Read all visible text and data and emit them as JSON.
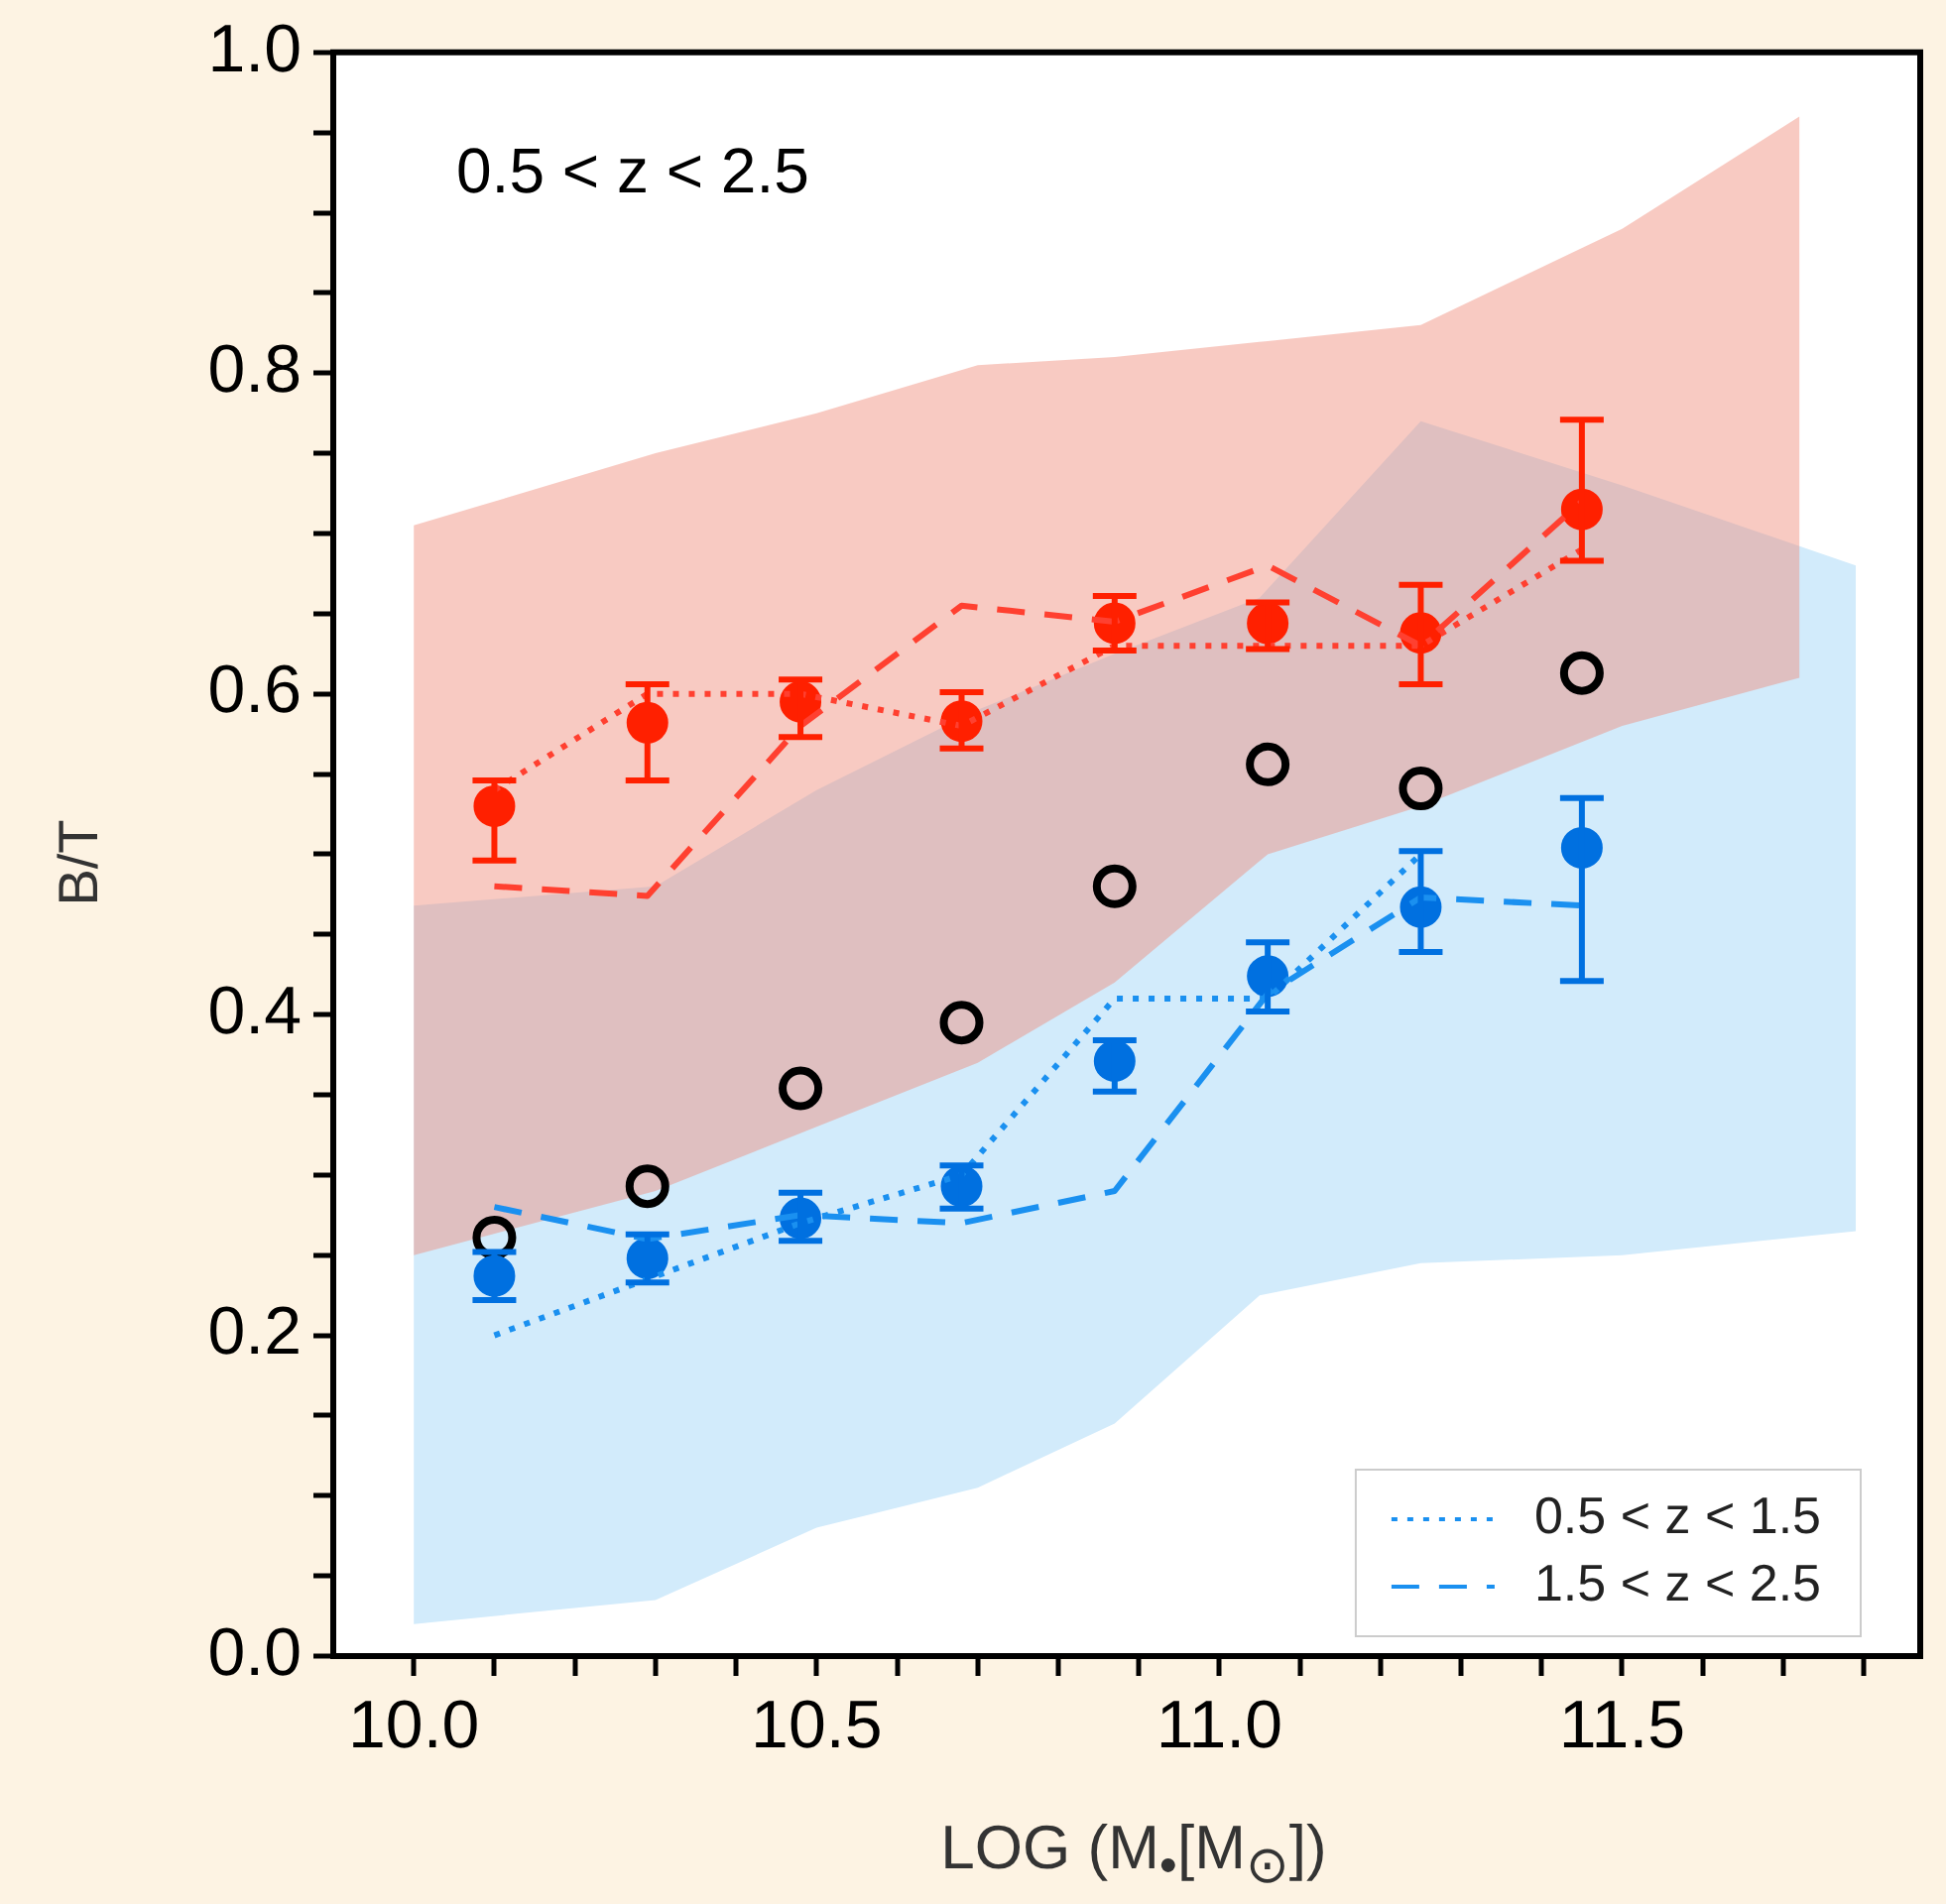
{
  "chart_data": {
    "type": "scatter",
    "title": "0.5 < z < 2.5",
    "xlabel": "LOG (M$_{•}$[M$_{⊙}$])",
    "ylabel": "B/T",
    "x": [
      10.1,
      10.29,
      10.48,
      10.68,
      10.87,
      11.06,
      11.25,
      11.45
    ],
    "xlim": [
      9.9,
      11.87
    ],
    "xticks": [
      {
        "value": 10,
        "label": "10.0"
      },
      {
        "value": 10.1,
        "label": null
      },
      {
        "value": 10.2,
        "label": null
      },
      {
        "value": 10.3,
        "label": null
      },
      {
        "value": 10.4,
        "label": null
      },
      10.5,
      {
        "value": 10.6,
        "label": null
      },
      {
        "value": 10.7,
        "label": null
      },
      {
        "value": 10.8,
        "label": null
      },
      {
        "value": 10.9,
        "label": null
      },
      {
        "value": 11,
        "label": "11.0"
      },
      {
        "value": 11.1,
        "label": null
      },
      {
        "value": 11.2,
        "label": null
      },
      {
        "value": 11.3,
        "label": null
      },
      {
        "value": 11.4,
        "label": null
      },
      11.5,
      {
        "value": 11.6,
        "label": null
      },
      {
        "value": 11.7,
        "label": null
      },
      {
        "value": 11.8,
        "label": null
      }
    ],
    "ylim": [
      0,
      1
    ],
    "yticks": [
      {
        "value": 0,
        "label": "0.0"
      },
      {
        "value": 0.05,
        "label": null
      },
      {
        "value": 0.1,
        "label": null
      },
      {
        "value": 0.15,
        "label": null
      },
      0.2,
      {
        "value": 0.25,
        "label": null
      },
      {
        "value": 0.3,
        "label": null
      },
      {
        "value": 0.35,
        "label": null
      },
      0.4,
      {
        "value": 0.45,
        "label": null
      },
      {
        "value": 0.5,
        "label": null
      },
      {
        "value": 0.55,
        "label": null
      },
      0.6,
      {
        "value": 0.65,
        "label": null
      },
      {
        "value": 0.7,
        "label": null
      },
      {
        "value": 0.75,
        "label": null
      },
      0.8,
      {
        "value": 0.85,
        "label": null
      },
      {
        "value": 0.9,
        "label": null
      },
      {
        "value": 0.95,
        "label": null
      },
      {
        "value": 1,
        "label": "1.0"
      }
    ],
    "grid": false,
    "legend": "bottom right",
    "marker": "circle",
    "series": [
      {
        "type": "area",
        "marker": "none",
        "color": "#d2ebfb",
        "x": [
          10.0,
          10.3,
          10.5,
          10.7,
          10.87,
          11.05,
          11.25,
          11.5,
          11.79
        ],
        "values": [
          null,
          null,
          null,
          null,
          null,
          null,
          null,
          null,
          null
        ],
        "lower": [
          0.02,
          0.035,
          0.08,
          0.105,
          0.145,
          0.225,
          0.245,
          0.25,
          0.265
        ],
        "upper": [
          0.468,
          0.48,
          0.54,
          0.59,
          0.625,
          0.66,
          0.77,
          0.73,
          0.68
        ]
      },
      {
        "type": "area",
        "marker": "none",
        "color": "#f08a78",
        "x": [
          10.0,
          10.3,
          10.5,
          10.7,
          10.87,
          11.06,
          11.25,
          11.5,
          11.72
        ],
        "values": [
          null,
          null,
          null,
          null,
          null,
          null,
          null,
          null,
          null
        ],
        "lower": [
          0.25,
          0.29,
          0.33,
          0.37,
          0.42,
          0.5,
          0.53,
          0.58,
          0.61
        ],
        "upper": [
          0.705,
          0.75,
          0.775,
          0.805,
          0.81,
          0.82,
          0.83,
          0.89,
          0.96
        ]
      },
      {
        "type": "line",
        "line_style": "dotted",
        "marker": "none",
        "color": "#ff4030",
        "values": [
          0.54,
          0.6,
          0.6,
          0.58,
          0.63,
          0.63,
          0.63,
          0.69
        ]
      },
      {
        "type": "line",
        "line_style": "dashed",
        "marker": "none",
        "color": "#ff4030",
        "values": [
          0.48,
          0.474,
          0.58,
          0.655,
          0.645,
          0.68,
          0.63,
          0.72
        ]
      },
      {
        "type": "line",
        "name": "0.5 < z < 1.5",
        "line_style": "dotted",
        "marker": "none",
        "color": "#1a90f0",
        "values": [
          0.2,
          0.235,
          0.27,
          0.3,
          0.41,
          0.41,
          0.5,
          null
        ]
      },
      {
        "type": "line",
        "name": "1.5 < z < 2.5",
        "line_style": "dashed",
        "marker": "none",
        "color": "#1a90f0",
        "values": [
          0.28,
          0.26,
          0.275,
          0.27,
          0.29,
          0.413,
          0.473,
          0.468
        ]
      },
      {
        "type": "scatter",
        "color": "#ff2000",
        "values": [
          0.53,
          0.582,
          0.595,
          0.583,
          0.644,
          0.644,
          0.638,
          0.715
        ],
        "errors": [
          [
            0.496,
            0.546
          ],
          [
            0.546,
            0.606
          ],
          [
            0.573,
            0.609
          ],
          [
            0.566,
            0.601
          ],
          [
            0.627,
            0.661
          ],
          [
            0.628,
            0.657
          ],
          [
            0.606,
            0.668
          ],
          [
            0.683,
            0.771
          ]
        ]
      },
      {
        "type": "scatter",
        "color": "#0070e0",
        "values": [
          0.237,
          0.248,
          0.273,
          0.293,
          0.371,
          0.424,
          0.467,
          0.504
        ],
        "errors": [
          [
            0.222,
            0.252
          ],
          [
            0.233,
            0.263
          ],
          [
            0.259,
            0.289
          ],
          [
            0.279,
            0.306
          ],
          [
            0.352,
            0.384
          ],
          [
            0.402,
            0.445
          ],
          [
            0.439,
            0.502
          ],
          [
            0.421,
            0.535
          ]
        ]
      },
      {
        "type": "scatter",
        "color": "#000000",
        "values": [
          0.261,
          0.293,
          0.354,
          0.395,
          0.48,
          0.556,
          0.541,
          0.613
        ]
      }
    ]
  }
}
